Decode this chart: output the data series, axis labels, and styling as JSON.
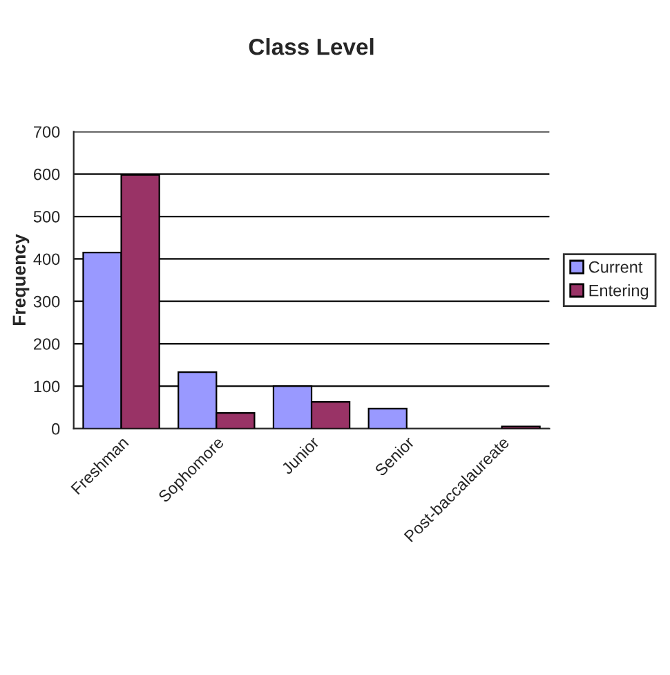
{
  "chart_data": {
    "type": "bar",
    "title": "Class Level",
    "ylabel": "Frequency",
    "categories": [
      "Freshman",
      "Sophomore",
      "Junior",
      "Senior",
      "Post-baccalaureate"
    ],
    "series": [
      {
        "name": "Current",
        "color": "#9999ff",
        "values": [
          415,
          133,
          100,
          47,
          null
        ]
      },
      {
        "name": "Entering",
        "color": "#993366",
        "values": [
          598,
          37,
          63,
          null,
          5
        ]
      }
    ],
    "ylim": [
      0,
      700
    ],
    "yticks": [
      0,
      100,
      200,
      300,
      400,
      500,
      600,
      700
    ],
    "grid": "y",
    "legend": "right"
  }
}
